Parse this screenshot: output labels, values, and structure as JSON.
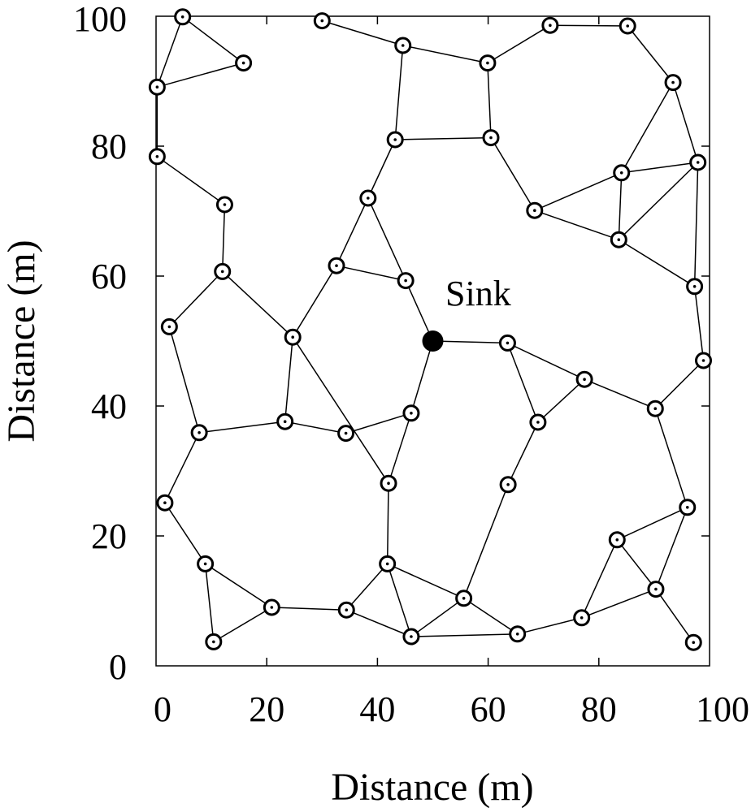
{
  "chart_data": {
    "type": "scatter",
    "title": "",
    "xlabel": "Distance (m)",
    "ylabel": "Distance (m)",
    "xlim": [
      0,
      100
    ],
    "ylim": [
      0,
      100
    ],
    "xticks": [
      0,
      20,
      40,
      60,
      80,
      100
    ],
    "yticks": [
      0,
      20,
      40,
      60,
      80,
      100
    ],
    "grid": false,
    "sink": {
      "label": "Sink",
      "x": 50,
      "y": 50
    },
    "nodes": [
      [
        4.8,
        99.9
      ],
      [
        0.2,
        89.1
      ],
      [
        15.8,
        92.8
      ],
      [
        30.0,
        99.3
      ],
      [
        44.6,
        95.5
      ],
      [
        59.9,
        92.8
      ],
      [
        71.2,
        98.6
      ],
      [
        85.2,
        98.5
      ],
      [
        93.4,
        89.8
      ],
      [
        0.2,
        78.4
      ],
      [
        43.2,
        81.0
      ],
      [
        60.5,
        81.3
      ],
      [
        12.4,
        71.0
      ],
      [
        38.3,
        72.0
      ],
      [
        68.4,
        70.1
      ],
      [
        84.1,
        75.9
      ],
      [
        97.9,
        77.5
      ],
      [
        83.6,
        65.6
      ],
      [
        12.0,
        60.7
      ],
      [
        32.6,
        61.6
      ],
      [
        45.1,
        59.3
      ],
      [
        97.3,
        58.4
      ],
      [
        2.4,
        52.2
      ],
      [
        24.7,
        50.6
      ],
      [
        63.5,
        49.7
      ],
      [
        98.9,
        47.0
      ],
      [
        77.4,
        44.1
      ],
      [
        90.2,
        39.6
      ],
      [
        7.8,
        35.9
      ],
      [
        23.3,
        37.6
      ],
      [
        34.3,
        35.8
      ],
      [
        46.1,
        38.9
      ],
      [
        69.0,
        37.5
      ],
      [
        42.0,
        28.1
      ],
      [
        63.6,
        27.9
      ],
      [
        1.6,
        25.1
      ],
      [
        96.0,
        24.4
      ],
      [
        83.3,
        19.4
      ],
      [
        8.9,
        15.7
      ],
      [
        41.8,
        15.7
      ],
      [
        20.9,
        9.0
      ],
      [
        34.4,
        8.6
      ],
      [
        55.6,
        10.4
      ],
      [
        90.3,
        11.8
      ],
      [
        76.9,
        7.4
      ],
      [
        10.4,
        3.7
      ],
      [
        46.1,
        4.5
      ],
      [
        65.3,
        4.9
      ],
      [
        97.1,
        3.6
      ]
    ],
    "edges": [
      [
        0,
        1
      ],
      [
        0,
        2
      ],
      [
        1,
        2
      ],
      [
        1,
        9
      ],
      [
        3,
        4
      ],
      [
        4,
        5
      ],
      [
        4,
        10
      ],
      [
        5,
        6
      ],
      [
        5,
        11
      ],
      [
        6,
        7
      ],
      [
        7,
        8
      ],
      [
        8,
        15
      ],
      [
        8,
        16
      ],
      [
        9,
        12
      ],
      [
        10,
        11
      ],
      [
        10,
        13
      ],
      [
        11,
        14
      ],
      [
        12,
        18
      ],
      [
        13,
        19
      ],
      [
        13,
        20
      ],
      [
        14,
        15
      ],
      [
        14,
        17
      ],
      [
        15,
        16
      ],
      [
        15,
        17
      ],
      [
        16,
        17
      ],
      [
        16,
        21
      ],
      [
        17,
        21
      ],
      [
        18,
        22
      ],
      [
        18,
        23
      ],
      [
        19,
        20
      ],
      [
        19,
        23
      ],
      [
        20,
        50
      ],
      [
        21,
        25
      ],
      [
        22,
        28
      ],
      [
        23,
        29
      ],
      [
        23,
        33
      ],
      [
        24,
        26
      ],
      [
        24,
        32
      ],
      [
        24,
        50
      ],
      [
        25,
        27
      ],
      [
        26,
        27
      ],
      [
        26,
        32
      ],
      [
        27,
        36
      ],
      [
        28,
        29
      ],
      [
        28,
        35
      ],
      [
        29,
        30
      ],
      [
        30,
        31
      ],
      [
        31,
        33
      ],
      [
        31,
        50
      ],
      [
        32,
        34
      ],
      [
        33,
        39
      ],
      [
        34,
        42
      ],
      [
        35,
        38
      ],
      [
        36,
        37
      ],
      [
        36,
        43
      ],
      [
        37,
        43
      ],
      [
        37,
        44
      ],
      [
        38,
        40
      ],
      [
        38,
        45
      ],
      [
        39,
        41
      ],
      [
        39,
        42
      ],
      [
        39,
        46
      ],
      [
        40,
        41
      ],
      [
        40,
        45
      ],
      [
        41,
        46
      ],
      [
        42,
        46
      ],
      [
        42,
        47
      ],
      [
        43,
        44
      ],
      [
        43,
        48
      ],
      [
        44,
        47
      ],
      [
        46,
        47
      ]
    ]
  }
}
